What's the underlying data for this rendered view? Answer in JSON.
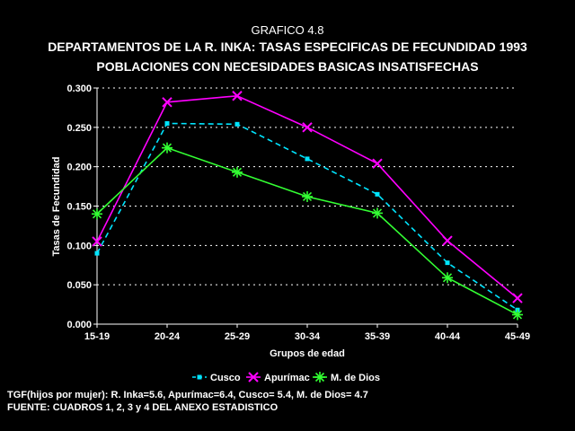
{
  "header": {
    "supertitle": "GRAFICO 4.8",
    "title": "DEPARTAMENTOS DE LA R. INKA: TASAS ESPECIFICAS DE FECUNDIDAD 1993",
    "subtitle": "POBLACIONES CON NECESIDADES BASICAS INSATISFECHAS"
  },
  "chart_data": {
    "type": "line",
    "xlabel": "Grupos de edad",
    "ylabel": "Tasas de Fecundidad",
    "ylim": [
      0,
      0.3
    ],
    "yticks": [
      "0.000",
      "0.050",
      "0.100",
      "0.150",
      "0.200",
      "0.250",
      "0.300"
    ],
    "categories": [
      "15-19",
      "20-24",
      "25-29",
      "30-34",
      "35-39",
      "40-44",
      "45-49"
    ],
    "grid": "horizontal dotted",
    "legend_position": "bottom",
    "series": [
      {
        "name": "Cusco",
        "values": [
          0.09,
          0.255,
          0.254,
          0.21,
          0.165,
          0.078,
          0.018
        ],
        "color": "#00e5ff",
        "marker": "square",
        "dash": true
      },
      {
        "name": "Apurímac",
        "values": [
          0.105,
          0.282,
          0.29,
          0.25,
          0.204,
          0.106,
          0.033
        ],
        "color": "#ff00ff",
        "marker": "x",
        "dash": false
      },
      {
        "name": "M. de Dios",
        "values": [
          0.14,
          0.224,
          0.193,
          0.162,
          0.141,
          0.059,
          0.012
        ],
        "color": "#33ff33",
        "marker": "star",
        "dash": false
      }
    ]
  },
  "footer": {
    "note1": "TGF(hijos por mujer): R. Inka=5.6, Apurímac=6.4, Cusco= 5.4, M. de Dios= 4.7",
    "note2": "FUENTE: CUADROS 1, 2, 3 y 4 DEL ANEXO ESTADISTICO"
  }
}
